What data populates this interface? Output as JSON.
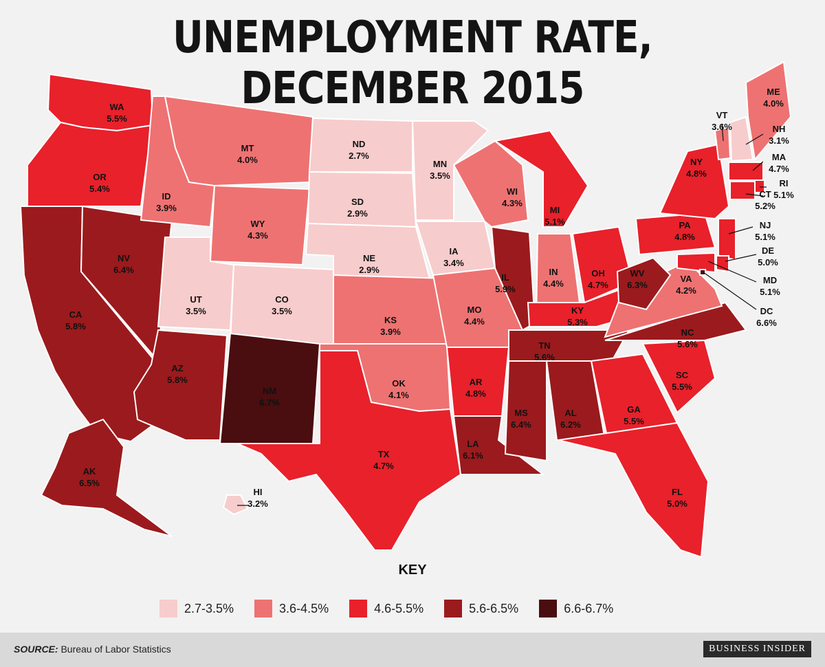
{
  "title": "UNEMPLOYMENT RATE, DECEMBER 2015",
  "key": {
    "title": "KEY",
    "bins": [
      {
        "label": "2.7-3.5%",
        "color": "#f7cccc"
      },
      {
        "label": "3.6-4.5%",
        "color": "#ee7272"
      },
      {
        "label": "4.6-5.5%",
        "color": "#e8212b"
      },
      {
        "label": "5.6-6.5%",
        "color": "#9b1a1d"
      },
      {
        "label": "6.6-6.7%",
        "color": "#4a0d10"
      }
    ]
  },
  "source": {
    "label": "SOURCE:",
    "text": "Bureau of Labor Statistics"
  },
  "brand": "BUSINESS INSIDER",
  "states": [
    {
      "abbr": "WA",
      "rate": "5.5%"
    },
    {
      "abbr": "OR",
      "rate": "5.4%"
    },
    {
      "abbr": "CA",
      "rate": "5.8%"
    },
    {
      "abbr": "NV",
      "rate": "6.4%"
    },
    {
      "abbr": "ID",
      "rate": "3.9%"
    },
    {
      "abbr": "MT",
      "rate": "4.0%"
    },
    {
      "abbr": "WY",
      "rate": "4.3%"
    },
    {
      "abbr": "UT",
      "rate": "3.5%"
    },
    {
      "abbr": "CO",
      "rate": "3.5%"
    },
    {
      "abbr": "AZ",
      "rate": "5.8%"
    },
    {
      "abbr": "NM",
      "rate": "6.7%"
    },
    {
      "abbr": "ND",
      "rate": "2.7%"
    },
    {
      "abbr": "SD",
      "rate": "2.9%"
    },
    {
      "abbr": "NE",
      "rate": "2.9%"
    },
    {
      "abbr": "KS",
      "rate": "3.9%"
    },
    {
      "abbr": "OK",
      "rate": "4.1%"
    },
    {
      "abbr": "TX",
      "rate": "4.7%"
    },
    {
      "abbr": "MN",
      "rate": "3.5%"
    },
    {
      "abbr": "IA",
      "rate": "3.4%"
    },
    {
      "abbr": "MO",
      "rate": "4.4%"
    },
    {
      "abbr": "AR",
      "rate": "4.8%"
    },
    {
      "abbr": "LA",
      "rate": "6.1%"
    },
    {
      "abbr": "WI",
      "rate": "4.3%"
    },
    {
      "abbr": "IL",
      "rate": "5.9%"
    },
    {
      "abbr": "MI",
      "rate": "5.1%"
    },
    {
      "abbr": "IN",
      "rate": "4.4%"
    },
    {
      "abbr": "OH",
      "rate": "4.7%"
    },
    {
      "abbr": "KY",
      "rate": "5.3%"
    },
    {
      "abbr": "TN",
      "rate": "5.6%"
    },
    {
      "abbr": "MS",
      "rate": "6.4%"
    },
    {
      "abbr": "AL",
      "rate": "6.2%"
    },
    {
      "abbr": "GA",
      "rate": "5.5%"
    },
    {
      "abbr": "FL",
      "rate": "5.0%"
    },
    {
      "abbr": "SC",
      "rate": "5.5%"
    },
    {
      "abbr": "NC",
      "rate": "5.6%"
    },
    {
      "abbr": "VA",
      "rate": "4.2%"
    },
    {
      "abbr": "WV",
      "rate": "6.3%"
    },
    {
      "abbr": "PA",
      "rate": "4.8%"
    },
    {
      "abbr": "NY",
      "rate": "4.8%"
    },
    {
      "abbr": "VT",
      "rate": "3.6%"
    },
    {
      "abbr": "NH",
      "rate": "3.1%"
    },
    {
      "abbr": "ME",
      "rate": "4.0%"
    },
    {
      "abbr": "MA",
      "rate": "4.7%"
    },
    {
      "abbr": "RI",
      "rate": "5.1%"
    },
    {
      "abbr": "CT",
      "rate": "5.2%"
    },
    {
      "abbr": "NJ",
      "rate": "5.1%"
    },
    {
      "abbr": "DE",
      "rate": "5.0%"
    },
    {
      "abbr": "MD",
      "rate": "5.1%"
    },
    {
      "abbr": "DC",
      "rate": "6.6%"
    },
    {
      "abbr": "AK",
      "rate": "6.5%"
    },
    {
      "abbr": "HI",
      "rate": "3.2%"
    }
  ]
}
